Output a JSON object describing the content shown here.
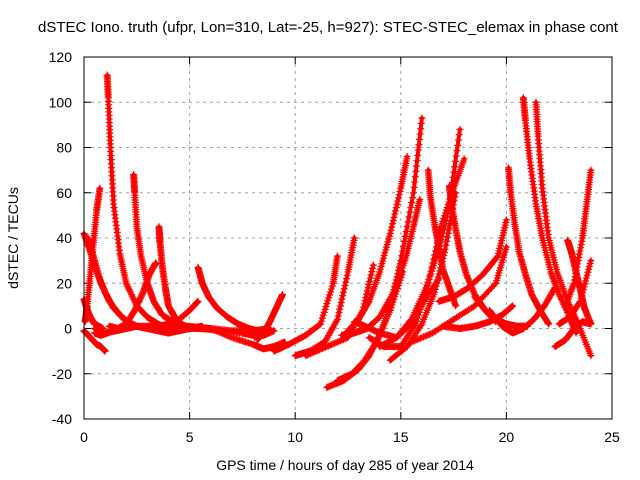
{
  "chart_data": {
    "type": "scatter",
    "title": "dSTEC Iono. truth (ufpr, Lon=310, Lat=-25, h=927): STEC-STEC_elemax in phase cont",
    "xlabel": "GPS time / hours of day 285 of year 2014",
    "ylabel": "dSTEC  / TECUs",
    "xlim": [
      0,
      25
    ],
    "ylim": [
      -40,
      120
    ],
    "xticks": [
      0,
      5,
      10,
      15,
      20,
      25
    ],
    "yticks": [
      -40,
      -20,
      0,
      20,
      40,
      60,
      80,
      100,
      120
    ],
    "xtick_labels": [
      "0",
      "5",
      "10",
      "15",
      "20",
      "25"
    ],
    "ytick_labels": [
      "-40",
      "-20",
      "0",
      "20",
      "40",
      "60",
      "80",
      "100",
      "120"
    ],
    "grid": true,
    "legend": "none",
    "marker": "+",
    "color": "#ff0000",
    "series": [
      {
        "x": [
          0.0,
          0.3,
          0.6,
          1.0,
          1.4,
          1.9,
          2.5,
          3.0
        ],
        "y": [
          42,
          34,
          25,
          16,
          9,
          4,
          1,
          0
        ]
      },
      {
        "x": [
          0.0,
          0.2,
          0.4,
          0.6,
          0.8,
          1.0
        ],
        "y": [
          -1,
          -3,
          -5,
          -7,
          -8,
          -10
        ]
      },
      {
        "x": [
          0.0,
          0.1,
          0.2,
          0.3,
          0.5,
          0.7,
          0.9
        ],
        "y": [
          13,
          10,
          7,
          5,
          2,
          1,
          0
        ]
      },
      {
        "x": [
          0.05,
          0.15,
          0.3,
          0.45,
          0.6,
          0.75
        ],
        "y": [
          3,
          10,
          24,
          38,
          52,
          62
        ]
      },
      {
        "x": [
          0.5,
          0.8,
          1.1,
          1.6,
          2.2,
          3.0,
          3.8,
          4.5
        ],
        "y": [
          -2,
          -3,
          -2,
          0,
          1,
          1,
          0,
          -1
        ]
      },
      {
        "x": [
          1.1,
          1.15,
          1.25,
          1.4,
          1.7,
          2.0,
          2.5,
          3.0,
          3.5,
          4.0
        ],
        "y": [
          112,
          102,
          80,
          55,
          33,
          20,
          10,
          5,
          2,
          0
        ]
      },
      {
        "x": [
          0.2,
          0.5,
          0.8,
          1.2,
          1.7,
          2.2
        ],
        "y": [
          40,
          30,
          20,
          12,
          6,
          2
        ]
      },
      {
        "x": [
          0.5,
          1.0,
          1.5,
          2.0,
          2.5,
          3.0,
          3.5,
          4.0
        ],
        "y": [
          0,
          -2,
          -1,
          0,
          1,
          0,
          -1,
          -2
        ]
      },
      {
        "x": [
          2.35,
          2.4,
          2.5,
          2.7,
          3.0,
          3.3,
          3.7,
          4.2,
          4.8,
          5.4,
          6.0
        ],
        "y": [
          68,
          60,
          45,
          32,
          20,
          12,
          6,
          3,
          1,
          0,
          0
        ]
      },
      {
        "x": [
          1.2,
          1.6,
          2.0,
          2.4,
          2.8,
          3.1,
          3.4
        ],
        "y": [
          1,
          0,
          2,
          8,
          16,
          24,
          29
        ]
      },
      {
        "x": [
          3.55,
          3.6,
          3.7,
          3.85,
          4.0,
          4.3,
          4.6,
          5.0
        ],
        "y": [
          45,
          38,
          28,
          18,
          10,
          5,
          2,
          0
        ]
      },
      {
        "x": [
          3.0,
          3.6,
          4.0,
          4.5,
          5.0,
          5.4
        ],
        "y": [
          1,
          1,
          2,
          4,
          8,
          12
        ]
      },
      {
        "x": [
          3.2,
          3.6,
          4.0,
          4.5,
          5.0,
          5.6
        ],
        "y": [
          2,
          -1,
          -2,
          -1,
          0,
          1
        ]
      },
      {
        "x": [
          5.4,
          5.6,
          5.9,
          6.3,
          6.8,
          7.3,
          7.8,
          8.2,
          8.5
        ],
        "y": [
          27,
          20,
          14,
          9,
          5,
          2,
          0,
          -1,
          -2
        ]
      },
      {
        "x": [
          4.5,
          5.5,
          6.5,
          7.5,
          8.5
        ],
        "y": [
          0,
          0,
          -1,
          -2,
          -3
        ]
      },
      {
        "x": [
          3.0,
          4.0,
          5.0,
          6.0,
          7.0,
          8.0,
          8.8
        ],
        "y": [
          0,
          1,
          1,
          0,
          -1,
          -1,
          0
        ]
      },
      {
        "x": [
          6.0,
          7.0,
          8.0,
          8.5,
          9.0,
          9.5
        ],
        "y": [
          0,
          -4,
          -7,
          -9,
          -8,
          -6
        ]
      },
      {
        "x": [
          8.2,
          8.5,
          8.8,
          9.1,
          9.4
        ],
        "y": [
          -5,
          -2,
          3,
          9,
          15
        ]
      },
      {
        "x": [
          7.5,
          8.0,
          8.5,
          9.0
        ],
        "y": [
          -2,
          -3,
          -3,
          -1
        ]
      },
      {
        "x": [
          9.0,
          9.7,
          10.5,
          11.2,
          11.8,
          12.0
        ],
        "y": [
          -10,
          -7,
          -3,
          2,
          20,
          32
        ]
      },
      {
        "x": [
          10.0,
          10.7,
          11.4,
          12.0,
          12.5,
          12.8
        ],
        "y": [
          -12,
          -10,
          -6,
          4,
          25,
          40
        ]
      },
      {
        "x": [
          12.5,
          13.0,
          13.5,
          14.0,
          14.5,
          15.0,
          15.3
        ],
        "y": [
          -1,
          4,
          12,
          25,
          42,
          62,
          76
        ]
      },
      {
        "x": [
          11.5,
          12.3,
          13.0,
          13.5,
          14.0,
          14.5,
          15.0,
          15.6,
          16.0
        ],
        "y": [
          -26,
          -23,
          -18,
          -12,
          -3,
          10,
          30,
          60,
          93
        ]
      },
      {
        "x": [
          12.0,
          12.7,
          13.3,
          13.9,
          14.5,
          15.1
        ],
        "y": [
          -23,
          -20,
          -14,
          -5,
          8,
          25
        ]
      },
      {
        "x": [
          10.5,
          11.5,
          12.5,
          13.2,
          13.7
        ],
        "y": [
          -12,
          -8,
          -4,
          8,
          28
        ]
      },
      {
        "x": [
          12.2,
          12.8,
          13.4,
          14.0,
          14.6,
          15.2,
          15.6,
          15.9
        ],
        "y": [
          -3,
          -2,
          0,
          5,
          15,
          30,
          45,
          57
        ]
      },
      {
        "x": [
          12.8,
          13.3,
          14.0,
          14.8,
          15.5,
          16.1,
          16.8
        ],
        "y": [
          3,
          1,
          -2,
          -4,
          2,
          12,
          22
        ]
      },
      {
        "x": [
          13.5,
          14.2,
          15.0,
          15.7,
          16.3,
          16.9,
          17.5,
          18.0
        ],
        "y": [
          -4,
          -8,
          -8,
          2,
          20,
          45,
          62,
          75
        ]
      },
      {
        "x": [
          14.0,
          14.8,
          15.5,
          16.2,
          16.8,
          17.3,
          17.8
        ],
        "y": [
          -8,
          -4,
          4,
          18,
          35,
          55,
          88
        ]
      },
      {
        "x": [
          14.5,
          15.3,
          16.0,
          16.6,
          17.1,
          17.6
        ],
        "y": [
          -14,
          -8,
          2,
          16,
          35,
          60
        ]
      },
      {
        "x": [
          16.3,
          16.4,
          16.6,
          16.8,
          17.0,
          17.3,
          17.6
        ],
        "y": [
          70,
          58,
          46,
          36,
          26,
          18,
          10
        ]
      },
      {
        "x": [
          17.3,
          17.4,
          17.6,
          17.8,
          18.1,
          18.5,
          19.0,
          19.5
        ],
        "y": [
          63,
          55,
          44,
          34,
          24,
          15,
          8,
          3
        ]
      },
      {
        "x": [
          16.8,
          17.5,
          18.2,
          18.9,
          19.6,
          20.0
        ],
        "y": [
          12,
          14,
          18,
          24,
          32,
          48
        ]
      },
      {
        "x": [
          15.5,
          16.5,
          17.5,
          18.5,
          19.5,
          20.0
        ],
        "y": [
          -6,
          -2,
          4,
          10,
          20,
          36
        ]
      },
      {
        "x": [
          17.0,
          17.8,
          18.5,
          19.2,
          19.8,
          20.3
        ],
        "y": [
          1,
          0,
          1,
          3,
          6,
          10
        ]
      },
      {
        "x": [
          18.5,
          19.0,
          19.5,
          20.0,
          20.5,
          21.0
        ],
        "y": [
          14,
          8,
          4,
          2,
          1,
          1
        ]
      },
      {
        "x": [
          20.1,
          20.2,
          20.4,
          20.6,
          20.9,
          21.2,
          21.6,
          22.0
        ],
        "y": [
          71,
          60,
          46,
          34,
          24,
          15,
          8,
          2
        ]
      },
      {
        "x": [
          20.8,
          20.9,
          21.1,
          21.4,
          21.7,
          22.1,
          22.5,
          23.0,
          23.3
        ],
        "y": [
          102,
          92,
          75,
          55,
          40,
          25,
          15,
          5,
          -2
        ]
      },
      {
        "x": [
          21.4,
          21.5,
          21.7,
          22.0,
          22.4,
          22.9,
          23.4,
          24.0
        ],
        "y": [
          100,
          85,
          62,
          40,
          25,
          12,
          2,
          -12
        ]
      },
      {
        "x": [
          19.2,
          19.8,
          20.3,
          20.8,
          21.3,
          21.8,
          22.3
        ],
        "y": [
          8,
          1,
          -2,
          0,
          4,
          10,
          18
        ]
      },
      {
        "x": [
          22.3,
          22.8,
          23.2,
          23.6,
          24.0
        ],
        "y": [
          -8,
          -5,
          0,
          3,
          2
        ]
      },
      {
        "x": [
          22.9,
          23.1,
          23.3,
          23.5,
          23.7,
          24.0
        ],
        "y": [
          39,
          33,
          25,
          17,
          9,
          2
        ]
      },
      {
        "x": [
          22.8,
          23.2,
          23.6,
          23.8,
          24.0
        ],
        "y": [
          10,
          20,
          40,
          55,
          70
        ]
      },
      {
        "x": [
          22.5,
          23.0,
          23.5,
          24.0
        ],
        "y": [
          2,
          5,
          12,
          30
        ]
      }
    ]
  }
}
